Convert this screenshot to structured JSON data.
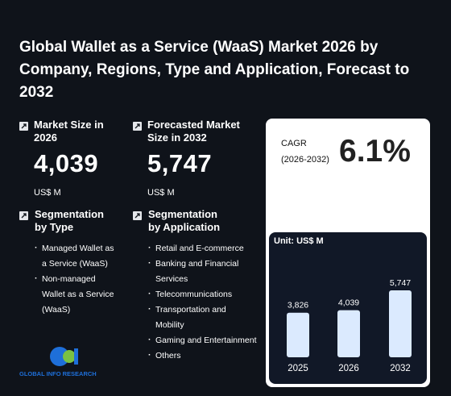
{
  "title": "Global Wallet as a Service (WaaS) Market 2026 by Company, Regions, Type and Application, Forecast to 2032",
  "market_size": {
    "label": "Market Size in 2026",
    "value": "4,039",
    "unit": "US$ M"
  },
  "forecast": {
    "label": "Forecasted Market Size in 2032",
    "value": "5,747",
    "unit": "US$ M"
  },
  "segmentation_type": {
    "heading": "Segmentation by Type",
    "items": [
      "Managed Wallet as a Service (WaaS)",
      "Non-managed Wallet as a Service (WaaS)"
    ]
  },
  "segmentation_application": {
    "heading": "Segmentation by Application",
    "items": [
      "Retail and E-commerce",
      "Banking and Financial Services",
      "Telecommunications",
      "Transportation and Mobility",
      "Gaming and Entertainment",
      "Others"
    ]
  },
  "cagr": {
    "label": "CAGR",
    "period": "(2026-2032)",
    "value": "6.1%"
  },
  "logo": "GLOBAL INFO RESEARCH",
  "chart_data": {
    "type": "bar",
    "unit_label": "Unit: US$ M",
    "categories": [
      "2025",
      "2026",
      "2032"
    ],
    "values": [
      3826,
      4039,
      5747
    ],
    "value_labels": [
      "3,826",
      "4,039",
      "5,747"
    ],
    "color": "#dbeafe"
  }
}
